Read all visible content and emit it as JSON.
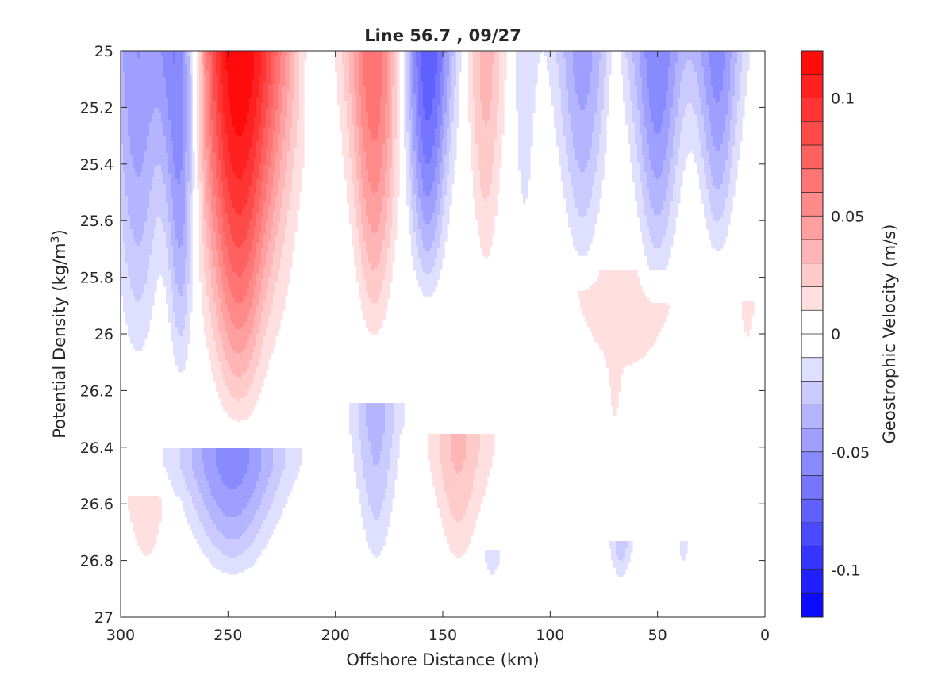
{
  "chart_data": {
    "type": "heatmap",
    "subtype": "filled-contour",
    "title": "Line 56.7 , 09/27",
    "xlabel": "Offshore Distance (km)",
    "ylabel_main": "Potential Density (kg/m",
    "ylabel_sup": "3",
    "ylabel_close": ")",
    "colorbar_label": "Geostrophic Velocity (m/s)",
    "xlim": [
      300,
      0
    ],
    "x_reversed": true,
    "ylim": [
      25,
      27
    ],
    "y_reversed": true,
    "x_ticks": [
      300,
      250,
      200,
      150,
      100,
      50,
      0
    ],
    "x_tick_labels": [
      "300",
      "250",
      "200",
      "150",
      "100",
      "50",
      "0"
    ],
    "y_ticks": [
      25,
      25.2,
      25.4,
      25.6,
      25.8,
      26,
      26.2,
      26.4,
      26.6,
      26.8,
      27
    ],
    "y_tick_labels": [
      "25",
      "25.2",
      "25.4",
      "25.6",
      "25.8",
      "26",
      "26.2",
      "26.4",
      "26.6",
      "26.8",
      "27"
    ],
    "data_ymax": 26.9,
    "colorbar": {
      "clim": [
        -0.12,
        0.12
      ],
      "levels": 24,
      "ticks": [
        0.1,
        0.05,
        0,
        -0.05,
        -0.1
      ],
      "tick_labels": [
        "0.1",
        "0.05",
        "0",
        "-0.05",
        "-0.1"
      ],
      "positive_color": "#ff0000",
      "negative_color": "#0000ff",
      "neutral_color": "#ffffff"
    },
    "features": [
      {
        "x": 292,
        "y_top": 25.0,
        "y_bottom": 26.22,
        "width_km": 15,
        "peak": -0.05
      },
      {
        "x": 272,
        "y_top": 25.0,
        "y_bottom": 26.25,
        "width_km": 10,
        "peak": -0.07
      },
      {
        "x": 245,
        "y_top": 25.0,
        "y_bottom": 26.38,
        "width_km": 22,
        "peak": 0.12
      },
      {
        "x": 225,
        "y_top": 25.0,
        "y_bottom": 26.3,
        "width_km": 14,
        "peak": 0.012
      },
      {
        "x": 210,
        "y_top": 25.0,
        "y_bottom": 25.4,
        "width_km": 8,
        "peak": -0.012
      },
      {
        "x": 182,
        "y_top": 25.0,
        "y_bottom": 26.1,
        "width_km": 14,
        "peak": 0.07
      },
      {
        "x": 157,
        "y_top": 25.0,
        "y_bottom": 25.95,
        "width_km": 13,
        "peak": -0.08
      },
      {
        "x": 130,
        "y_top": 25.0,
        "y_bottom": 25.9,
        "width_km": 10,
        "peak": 0.035
      },
      {
        "x": 112,
        "y_top": 25.0,
        "y_bottom": 25.9,
        "width_km": 7,
        "peak": -0.018
      },
      {
        "x": 85,
        "y_top": 25.0,
        "y_bottom": 25.85,
        "width_km": 14,
        "peak": -0.045
      },
      {
        "x": 50,
        "y_top": 25.0,
        "y_bottom": 25.9,
        "width_km": 14,
        "peak": -0.06
      },
      {
        "x": 22,
        "y_top": 25.0,
        "y_bottom": 25.8,
        "width_km": 12,
        "peak": -0.055
      },
      {
        "x": 70,
        "y_top": 25.0,
        "y_bottom": 26.5,
        "width_km": 4,
        "peak": 0.012
      },
      {
        "x": 248,
        "y_top": 26.45,
        "y_bottom": 26.9,
        "width_km": 26,
        "peak": -0.055
      },
      {
        "x": 181,
        "y_top": 26.3,
        "y_bottom": 26.9,
        "width_km": 12,
        "peak": -0.035
      },
      {
        "x": 143,
        "y_top": 26.4,
        "y_bottom": 26.9,
        "width_km": 13,
        "peak": 0.028
      },
      {
        "x": 127,
        "y_top": 26.78,
        "y_bottom": 26.9,
        "width_km": 6,
        "peak": -0.018
      },
      {
        "x": 67,
        "y_top": 26.75,
        "y_bottom": 26.9,
        "width_km": 6,
        "peak": -0.025
      },
      {
        "x": 38,
        "y_top": 26.75,
        "y_bottom": 26.9,
        "width_km": 4,
        "peak": -0.012
      },
      {
        "x": 288,
        "y_top": 26.6,
        "y_bottom": 26.9,
        "width_km": 12,
        "peak": 0.018
      },
      {
        "x": 65,
        "y_top": 25.85,
        "y_bottom": 26.65,
        "width_km": 55,
        "peak": 0.012
      },
      {
        "x": 120,
        "y_top": 26.4,
        "y_bottom": 26.9,
        "width_km": 45,
        "peak": 0.006
      },
      {
        "x": 8,
        "y_top": 25.9,
        "y_bottom": 26.1,
        "width_km": 4,
        "peak": 0.012
      }
    ]
  }
}
